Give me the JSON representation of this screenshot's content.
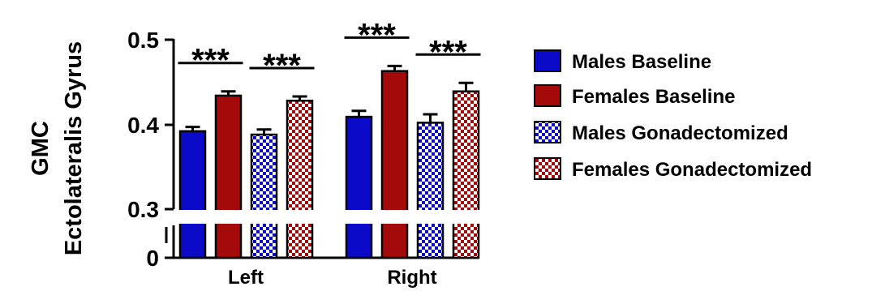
{
  "chart_data": {
    "type": "bar",
    "ylabel_lines": [
      "GMC",
      "Ectolateralis Gyrus"
    ],
    "categories": [
      "Left",
      "Right"
    ],
    "y_ticks_upper": [
      0.3,
      0.4,
      0.5
    ],
    "y_ticks_lower": [
      0.0
    ],
    "ylim_upper": [
      0.3,
      0.5
    ],
    "ylim_lower": [
      0.0,
      0.03
    ],
    "axis_break": true,
    "legend_position": "right",
    "series": [
      {
        "name": "Males Baseline",
        "color": "#0a0ac8",
        "pattern": "solid",
        "values": [
          0.392,
          0.409
        ],
        "errors": [
          0.005,
          0.007
        ]
      },
      {
        "name": "Females Baseline",
        "color": "#a50a0a",
        "pattern": "solid",
        "values": [
          0.434,
          0.463
        ],
        "errors": [
          0.005,
          0.006
        ]
      },
      {
        "name": "Males Gonadectomized",
        "color": "#0a0ac8",
        "pattern": "checker",
        "values": [
          0.388,
          0.402
        ],
        "errors": [
          0.006,
          0.01
        ]
      },
      {
        "name": "Females Gonadectomized",
        "color": "#a50a0a",
        "pattern": "checker",
        "values": [
          0.428,
          0.439
        ],
        "errors": [
          0.005,
          0.01
        ]
      }
    ],
    "annotations": [
      {
        "text": "***",
        "category": "Left",
        "from_series": 0,
        "to_series": 1
      },
      {
        "text": "***",
        "category": "Left",
        "from_series": 2,
        "to_series": 3
      },
      {
        "text": "***",
        "category": "Right",
        "from_series": 0,
        "to_series": 1
      },
      {
        "text": "***",
        "category": "Right",
        "from_series": 2,
        "to_series": 3
      }
    ]
  }
}
